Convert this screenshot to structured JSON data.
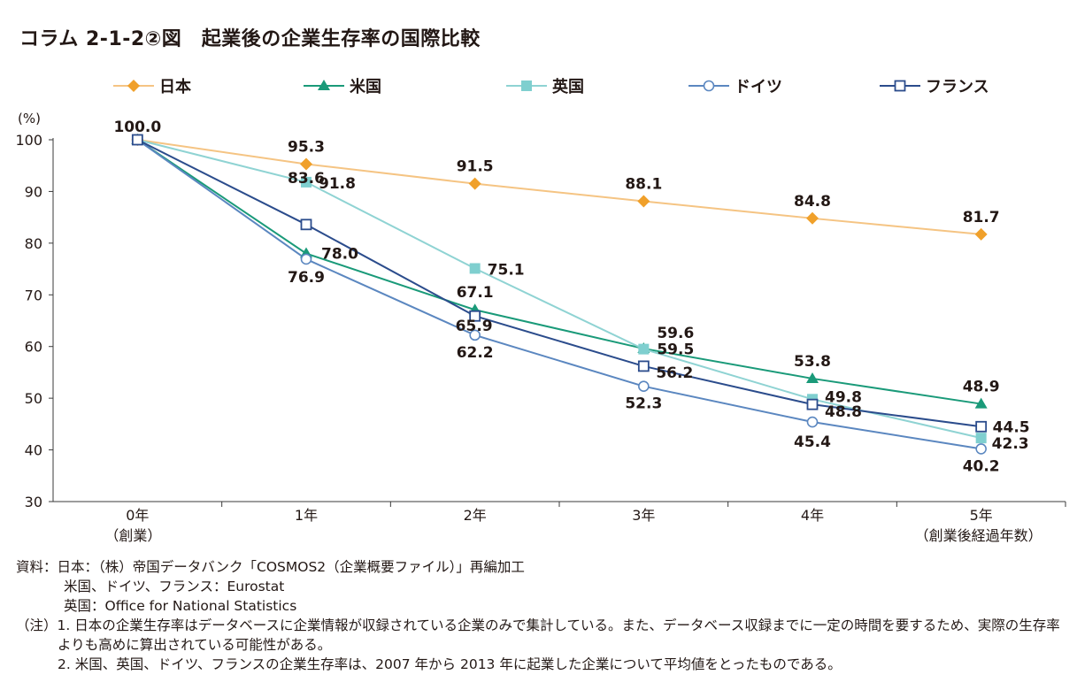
{
  "title": "コラム 2-1-2②図　起業後の企業生存率の国際比較",
  "chart_data": {
    "type": "line",
    "x": [
      "0年",
      "1年",
      "2年",
      "3年",
      "4年",
      "5年"
    ],
    "x_sublabels": [
      "（創業）",
      "",
      "",
      "",
      "",
      "（創業後経過年数）"
    ],
    "ylabel": "(%)",
    "ylim": [
      30,
      100
    ],
    "yticks": [
      30,
      40,
      50,
      60,
      70,
      80,
      90,
      100
    ],
    "legend_position": "top",
    "series": [
      {
        "name": "日本",
        "color": "#f0a02a",
        "line": "#f5c483",
        "marker": "diamond",
        "values": [
          100.0,
          95.3,
          91.5,
          88.1,
          84.8,
          81.7
        ]
      },
      {
        "name": "米国",
        "color": "#1a9a79",
        "line": "#1a9a79",
        "marker": "triangle",
        "values": [
          100.0,
          78.0,
          67.1,
          59.6,
          53.8,
          48.9
        ]
      },
      {
        "name": "英国",
        "color": "#7fcfcf",
        "line": "#8fd3d3",
        "marker": "square",
        "values": [
          100.0,
          91.8,
          75.1,
          59.5,
          49.8,
          42.3
        ]
      },
      {
        "name": "ドイツ",
        "color": "#5b87c0",
        "line": "#5b87c0",
        "marker": "circle-open",
        "values": [
          100.0,
          76.9,
          62.2,
          52.3,
          45.4,
          40.2
        ]
      },
      {
        "name": "フランス",
        "color": "#2b4c8c",
        "line": "#2b4c8c",
        "marker": "square-open",
        "values": [
          100.0,
          83.6,
          65.9,
          56.2,
          48.8,
          44.5
        ]
      }
    ],
    "value_label_text": {
      "0": [
        "100.0"
      ],
      "1": [
        "95.3",
        "78.0",
        "91.8",
        "76.9",
        "83.6"
      ],
      "2": [
        "91.5",
        "67.1",
        "75.1",
        "62.2",
        "65.9"
      ],
      "3": [
        "88.1",
        "59.6",
        "59.5",
        "52.3",
        "56.2"
      ],
      "4": [
        "84.8",
        "53.8",
        "49.8",
        "45.4",
        "48.8"
      ],
      "5": [
        "81.7",
        "48.9",
        "42.3",
        "40.2",
        "44.5"
      ]
    }
  },
  "notes": {
    "source_lines": [
      "資料：日本：（株）帝国データバンク「COSMOS2（企業概要ファイル）」再編加工",
      "米国、ドイツ、フランス：Eurostat",
      "英国：Office for National Statistics"
    ],
    "note1": "（注）1. 日本の企業生存率はデータベースに企業情報が収録されている企業のみで集計している。また、データベース収録までに一定の時間を要するため、実際の生存率よりも高めに算出されている可能性がある。",
    "note2": "2. 米国、英国、ドイツ、フランスの企業生存率は、2007 年から 2013 年に起業した企業について平均値をとったものである。"
  }
}
